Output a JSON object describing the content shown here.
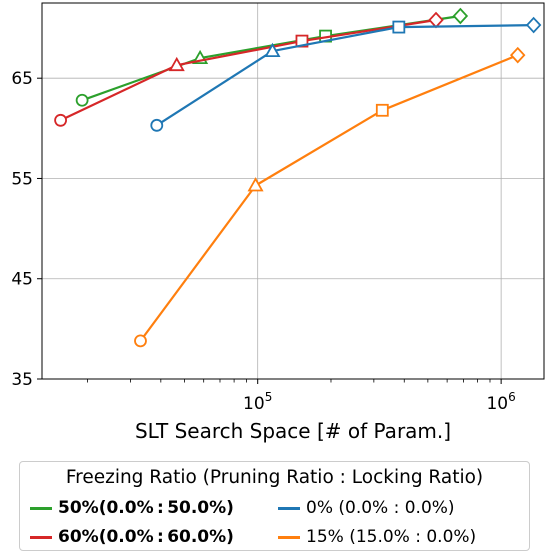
{
  "chart_data": {
    "type": "line",
    "title": "",
    "xlabel": "SLT Search Space [# of Param.]",
    "ylabel": "",
    "xscale": "log",
    "xlim": [
      13000,
      1500000
    ],
    "ylim": [
      35,
      72.5
    ],
    "xticks": [
      {
        "value": 100000,
        "base": "10",
        "exp": "5"
      },
      {
        "value": 1000000,
        "base": "10",
        "exp": "6"
      }
    ],
    "yticks": [
      35,
      45,
      55,
      65
    ],
    "grid": true,
    "legend": {
      "title": "Freezing Ratio (Pruning Ratio : Locking Ratio)",
      "placement": "bottom, below axis"
    },
    "series": [
      {
        "name": "50%(0.0% : 50.0%)",
        "bold": true,
        "color": "#2ca02c",
        "x": [
          19000,
          58000,
          190000,
          680000
        ],
        "y": [
          62.8,
          67.0,
          69.2,
          71.2
        ],
        "markers": [
          "circle",
          "triangle",
          "square",
          "diamond"
        ]
      },
      {
        "name": "60%(0.0% : 60.0%)",
        "bold": true,
        "color": "#d62728",
        "x": [
          15500,
          46500,
          152000,
          540000
        ],
        "y": [
          60.8,
          66.3,
          68.7,
          70.8
        ],
        "markers": [
          "circle",
          "triangle",
          "square",
          "diamond"
        ]
      },
      {
        "name": "0% (0.0% : 0.0%)",
        "bold": false,
        "color": "#1f77b4",
        "x": [
          38500,
          115000,
          380000,
          1360000
        ],
        "y": [
          60.3,
          67.7,
          70.1,
          70.3
        ],
        "markers": [
          "circle",
          "triangle",
          "square",
          "diamond"
        ]
      },
      {
        "name": "15% (15.0% : 0.0%)",
        "bold": false,
        "color": "#ff7f0e",
        "x": [
          33000,
          98000,
          325000,
          1170000
        ],
        "y": [
          38.8,
          54.3,
          61.8,
          67.3
        ],
        "markers": [
          "circle",
          "triangle",
          "square",
          "diamond"
        ]
      }
    ]
  }
}
